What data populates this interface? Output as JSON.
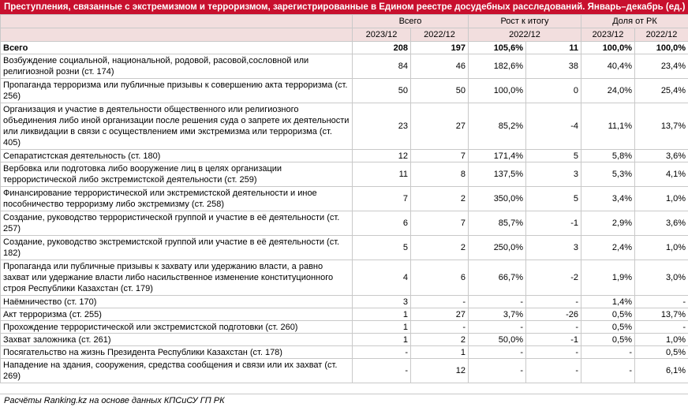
{
  "title": "Преступления, связанные с экстремизмом и терроризмом, зарегистрированные в Едином реестре досудебных расследований. Январь–декабрь (ед.)",
  "headers": {
    "group_all": "Всего",
    "group_growth": "Рост к итогу",
    "group_share": "Доля от РК",
    "col_2023": "2023/12",
    "col_2022": "2022/12",
    "col_growth_period": "2022/12",
    "col_share_2023": "2023/12",
    "col_share_2022": "2022/12"
  },
  "rows": [
    {
      "label": "Всего",
      "v2023": "208",
      "v2022": "197",
      "pct": "105,6%",
      "diff": "11",
      "s2023": "100,0%",
      "s2022": "100,0%"
    },
    {
      "label": "Возбуждение социальной, национальной, родовой, расовой,сословной или религиозной розни (ст. 174)",
      "v2023": "84",
      "v2022": "46",
      "pct": "182,6%",
      "diff": "38",
      "s2023": "40,4%",
      "s2022": "23,4%"
    },
    {
      "label": "Пропаганда терроризма или публичные призывы к совершению акта терроризма (ст. 256)",
      "v2023": "50",
      "v2022": "50",
      "pct": "100,0%",
      "diff": "0",
      "s2023": "24,0%",
      "s2022": "25,4%"
    },
    {
      "label": "Организация и участие в деятельности общественного или религиозного объединения либо иной организации после решения суда о запрете их деятельности или ликвидации в связи с осуществлением ими экстремизма или терроризма (ст. 405)",
      "v2023": "23",
      "v2022": "27",
      "pct": "85,2%",
      "diff": "-4",
      "s2023": "11,1%",
      "s2022": "13,7%"
    },
    {
      "label": "Сепаратистская деятельность (ст. 180)",
      "v2023": "12",
      "v2022": "7",
      "pct": "171,4%",
      "diff": "5",
      "s2023": "5,8%",
      "s2022": "3,6%"
    },
    {
      "label": "Вербовка или подготовка либо вооружение лиц в целях организации террористической либо экстремистской деятельности (ст. 259)",
      "v2023": "11",
      "v2022": "8",
      "pct": "137,5%",
      "diff": "3",
      "s2023": "5,3%",
      "s2022": "4,1%"
    },
    {
      "label": "Финансирование террористической или экстремистской деятельности и иное пособничество терроризму либо экстремизму (ст. 258)",
      "v2023": "7",
      "v2022": "2",
      "pct": "350,0%",
      "diff": "5",
      "s2023": "3,4%",
      "s2022": "1,0%"
    },
    {
      "label": "Создание, руководство террористической группой и участие в её деятельности (ст. 257)",
      "v2023": "6",
      "v2022": "7",
      "pct": "85,7%",
      "diff": "-1",
      "s2023": "2,9%",
      "s2022": "3,6%"
    },
    {
      "label": "Создание, руководство экстремистской группой или участие в её деятельности (ст. 182)",
      "v2023": "5",
      "v2022": "2",
      "pct": "250,0%",
      "diff": "3",
      "s2023": "2,4%",
      "s2022": "1,0%"
    },
    {
      "label": "Пропаганда или публичные призывы к захвату или удержанию власти, а равно захват или удержание власти либо насильственное изменение конституционного строя Республики Казахстан (ст. 179)",
      "v2023": "4",
      "v2022": "6",
      "pct": "66,7%",
      "diff": "-2",
      "s2023": "1,9%",
      "s2022": "3,0%"
    },
    {
      "label": "Наёмничество (ст. 170)",
      "v2023": "3",
      "v2022": "-",
      "pct": "-",
      "diff": "-",
      "s2023": "1,4%",
      "s2022": "-"
    },
    {
      "label": "Акт терроризма (ст. 255)",
      "v2023": "1",
      "v2022": "27",
      "pct": "3,7%",
      "diff": "-26",
      "s2023": "0,5%",
      "s2022": "13,7%"
    },
    {
      "label": "Прохождение террористической или экстремистской подготовки (ст. 260)",
      "v2023": "1",
      "v2022": "-",
      "pct": "-",
      "diff": "-",
      "s2023": "0,5%",
      "s2022": "-"
    },
    {
      "label": "Захват заложника (ст. 261)",
      "v2023": "1",
      "v2022": "2",
      "pct": "50,0%",
      "diff": "-1",
      "s2023": "0,5%",
      "s2022": "1,0%"
    },
    {
      "label": "Посягательство на жизнь Президента Республики Казахстан (ст. 178)",
      "v2023": "-",
      "v2022": "1",
      "pct": "-",
      "diff": "-",
      "s2023": "-",
      "s2022": "0,5%"
    },
    {
      "label": "Нападение на здания, сооружения, средства сообщения и связи или их захват (ст. 269)",
      "v2023": "-",
      "v2022": "12",
      "pct": "-",
      "diff": "-",
      "s2023": "-",
      "s2022": "6,1%"
    }
  ],
  "footer": "Расчёты Ranking.kz на основе данных КПСиСУ ГП РК"
}
